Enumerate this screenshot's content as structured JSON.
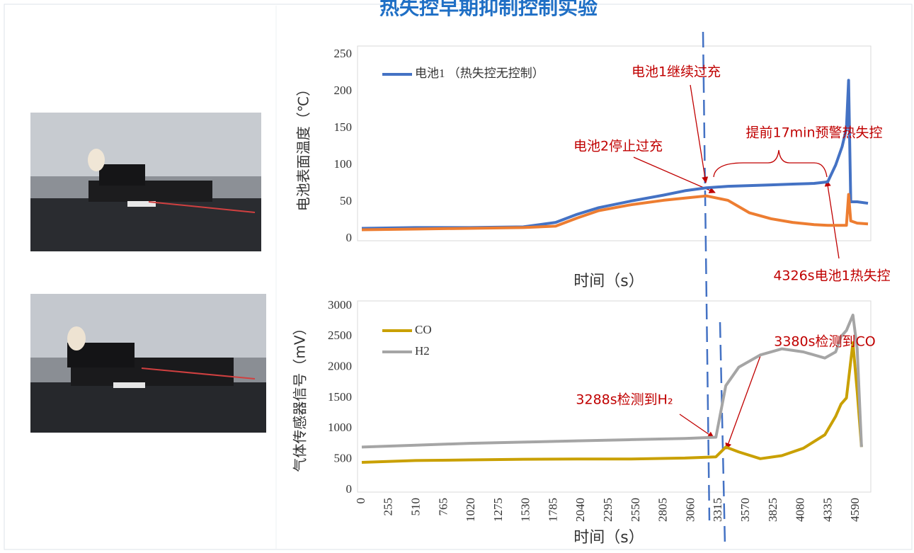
{
  "chart_data": [
    {
      "type": "line",
      "title": "热失控早期抑制控制实验",
      "y_label": "电池表面温度（℃）",
      "x_label": "时间（s）",
      "xlim": [
        0,
        4700
      ],
      "ylim": [
        0,
        250
      ],
      "yticks": [
        0,
        50,
        100,
        150,
        200,
        250
      ],
      "x": [
        0,
        500,
        1000,
        1500,
        1800,
        2000,
        2200,
        2500,
        2800,
        3000,
        3200,
        3400,
        3600,
        3800,
        4000,
        4200,
        4326,
        4400,
        4460,
        4500,
        4520,
        4540,
        4600,
        4700
      ],
      "series": [
        {
          "name": "电池1 （热失控无控制）",
          "color": "#4472c4",
          "values": [
            14,
            15,
            15,
            16,
            22,
            33,
            42,
            51,
            59,
            65,
            69,
            71,
            72,
            73,
            74,
            75,
            77,
            100,
            125,
            150,
            215,
            50,
            50,
            48
          ]
        },
        {
          "color": "#ed7d31",
          "values": [
            12,
            13,
            14,
            15,
            17,
            28,
            38,
            46,
            52,
            55,
            58,
            52,
            35,
            27,
            22,
            19,
            18,
            18,
            18,
            18,
            60,
            24,
            21,
            20
          ]
        }
      ],
      "annotations": [
        "电池1继续过充",
        "提前17min预警热失控",
        "电池2停止过充",
        "4326s电池1热失控"
      ]
    },
    {
      "type": "line",
      "y_label": "气体传感器信号（mV）",
      "x_label": "时间（s）",
      "xlim": [
        0,
        4700
      ],
      "ylim": [
        0,
        3000
      ],
      "yticks": [
        0,
        500,
        1000,
        1500,
        2000,
        2500,
        3000
      ],
      "xticks": [
        0,
        255,
        510,
        765,
        1020,
        1275,
        1530,
        1785,
        2040,
        2295,
        2550,
        2805,
        3060,
        3315,
        3570,
        3825,
        4080,
        4335,
        4590
      ],
      "x": [
        0,
        500,
        1000,
        1500,
        2000,
        2500,
        3000,
        3288,
        3380,
        3500,
        3700,
        3900,
        4100,
        4300,
        4400,
        4450,
        4500,
        4560,
        4600,
        4640
      ],
      "series": [
        {
          "name": "CO",
          "color": "#c9a000",
          "values": [
            450,
            480,
            490,
            500,
            505,
            505,
            520,
            540,
            700,
            620,
            510,
            560,
            680,
            900,
            1200,
            1400,
            1500,
            2400,
            1600,
            700
          ]
        },
        {
          "name": "H2",
          "color": "#a5a5a5",
          "values": [
            700,
            730,
            760,
            780,
            800,
            820,
            840,
            860,
            1700,
            2000,
            2200,
            2300,
            2250,
            2150,
            2250,
            2500,
            2600,
            2850,
            2300,
            700
          ]
        }
      ],
      "annotations": [
        "3288s检测到H₂",
        "3380s检测到CO"
      ]
    }
  ]
}
